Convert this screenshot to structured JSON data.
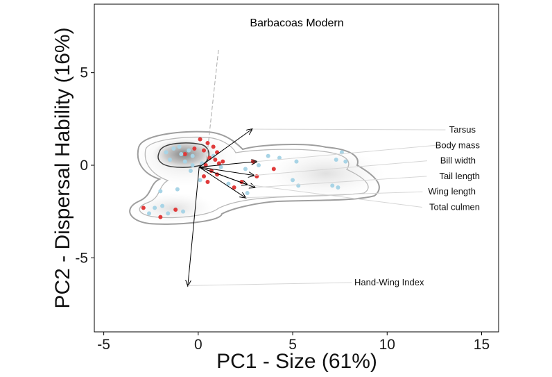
{
  "chart_data": {
    "type": "scatter",
    "title": "Barbacoas Modern",
    "xlabel": "PC1 - Size (61%)",
    "ylabel": "PC2 - Dispersal Hability (16%)",
    "xlim": [
      -5.5,
      15.9
    ],
    "ylim": [
      -9.0,
      8.7
    ],
    "x_ticks": [
      -5,
      0,
      5,
      10,
      15
    ],
    "x_tick_labels": [
      "-5",
      "0",
      "5",
      "10",
      "15"
    ],
    "y_ticks": [
      -5,
      0,
      5
    ],
    "y_tick_labels": [
      "-5",
      "0",
      "5"
    ],
    "grid": false,
    "colors": {
      "red_series": "#e03a3a",
      "blue_series": "#a8d4e6",
      "contour": "#9e9e9e",
      "inner_contour": "#3c3c3c",
      "arrow": "#000000"
    },
    "series": [
      {
        "color_key": "red_series",
        "points": [
          [
            0.1,
            1.4
          ],
          [
            0.5,
            1.2
          ],
          [
            0.3,
            0.8
          ],
          [
            0.8,
            1.0
          ],
          [
            1.0,
            0.7
          ],
          [
            -0.2,
            0.9
          ],
          [
            0.6,
            0.4
          ],
          [
            0.9,
            0.3
          ],
          [
            1.1,
            0.1
          ],
          [
            0.4,
            0.0
          ],
          [
            0.7,
            -0.3
          ],
          [
            0.3,
            -0.6
          ],
          [
            0.5,
            -0.9
          ],
          [
            1.0,
            -0.5
          ],
          [
            1.3,
            0.2
          ],
          [
            2.9,
            0.2
          ],
          [
            3.1,
            -0.6
          ],
          [
            4.0,
            -0.2
          ],
          [
            -2.9,
            -2.3
          ],
          [
            -2.0,
            -2.8
          ],
          [
            -1.2,
            -2.4
          ],
          [
            -0.7,
            0.6
          ],
          [
            1.9,
            -1.2
          ],
          [
            2.3,
            -0.9
          ]
        ]
      },
      {
        "color_key": "blue_series",
        "points": [
          [
            -1.7,
            0.7
          ],
          [
            -1.3,
            0.9
          ],
          [
            -0.9,
            0.6
          ],
          [
            -1.5,
            0.3
          ],
          [
            -0.5,
            0.8
          ],
          [
            -1.0,
            1.0
          ],
          [
            -0.3,
            0.5
          ],
          [
            -0.7,
            0.2
          ],
          [
            -0.3,
            0.0
          ],
          [
            0.2,
            0.1
          ],
          [
            -0.4,
            -0.3
          ],
          [
            0.8,
            0.5
          ],
          [
            1.2,
            -0.1
          ],
          [
            2.5,
            -0.2
          ],
          [
            3.2,
            0.0
          ],
          [
            3.7,
            0.5
          ],
          [
            4.3,
            0.4
          ],
          [
            5.2,
            0.2
          ],
          [
            5.0,
            -0.8
          ],
          [
            5.3,
            -1.1
          ],
          [
            7.1,
            -1.1
          ],
          [
            7.4,
            -1.2
          ],
          [
            7.6,
            0.7
          ],
          [
            7.8,
            0.2
          ],
          [
            7.3,
            0.3
          ],
          [
            -2.3,
            -2.3
          ],
          [
            -2.6,
            -2.6
          ],
          [
            -1.6,
            -2.6
          ],
          [
            -1.9,
            -2.2
          ],
          [
            -1.1,
            -1.3
          ],
          [
            -2.0,
            -1.4
          ],
          [
            -0.8,
            -2.5
          ],
          [
            0.1,
            -0.8
          ],
          [
            1.6,
            -1.0
          ],
          [
            2.6,
            -1.5
          ]
        ]
      }
    ],
    "loadings": [
      {
        "label": "Tarsus",
        "x": 2.85,
        "y": 1.95
      },
      {
        "label": "Body mass",
        "x": 3.1,
        "y": 0.2
      },
      {
        "label": "Bill width",
        "x": 2.95,
        "y": -0.55
      },
      {
        "label": "Tail length",
        "x": 3.0,
        "y": -1.2
      },
      {
        "label": "Wing length",
        "x": 2.5,
        "y": -1.75
      },
      {
        "label": "Total culmen",
        "x": 2.6,
        "y": -1.05
      },
      {
        "label": "Hand-Wing Index",
        "x": -0.55,
        "y": -6.5
      }
    ]
  }
}
